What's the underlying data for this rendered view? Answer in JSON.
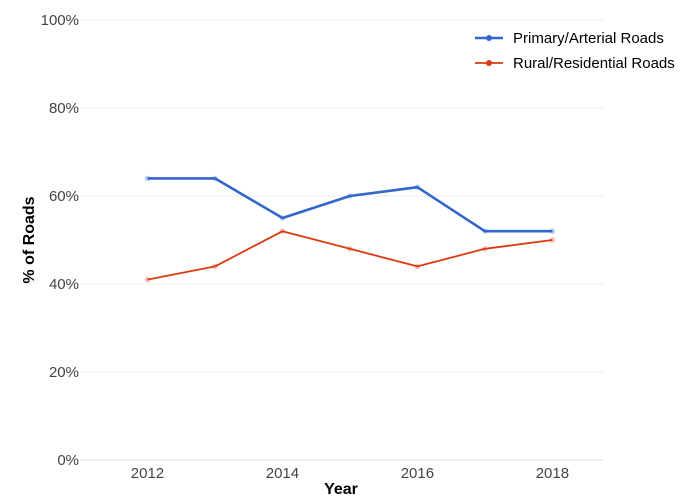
{
  "chart_data": {
    "type": "line",
    "title": "",
    "xlabel": "Year",
    "ylabel": "% of Roads",
    "x": [
      2012,
      2013,
      2014,
      2015,
      2016,
      2017,
      2018
    ],
    "xticks": [
      "2012",
      "2014",
      "2016",
      "2018"
    ],
    "yticks": [
      "0%",
      "20%",
      "40%",
      "60%",
      "80%",
      "100%"
    ],
    "ylim": [
      0,
      100
    ],
    "grid": true,
    "legend_position": "top-right",
    "series": [
      {
        "name": "Primary/Arterial Roads",
        "color": "#3366cc",
        "values": [
          64,
          64,
          55,
          60,
          62,
          52,
          52
        ]
      },
      {
        "name": "Rural/Residential Roads",
        "color": "#dc3912",
        "values": [
          41,
          44,
          52,
          48,
          44,
          48,
          50
        ]
      }
    ]
  }
}
